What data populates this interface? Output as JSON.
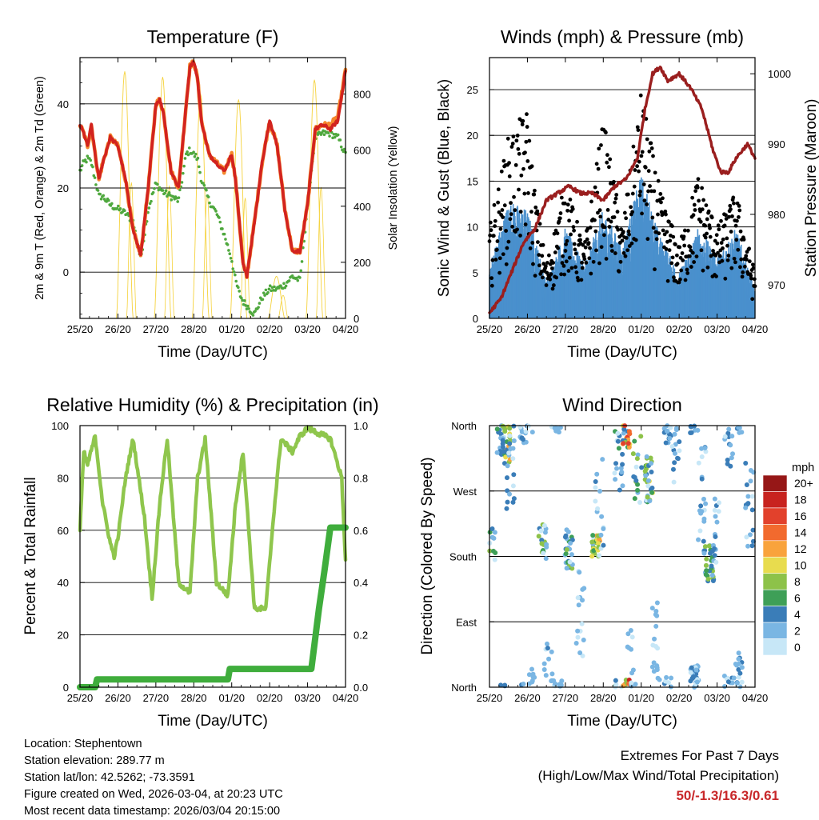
{
  "colors": {
    "temp_red": "#d2231f",
    "temp_orange": "#f5872d",
    "dewpoint_green": "#4fa83e",
    "solar_yellow": "#f5d23c",
    "gust_black": "#000000",
    "wind_blue": "#4a90cd",
    "pressure_maroon": "#9a1e1e",
    "rh_lightgreen": "#8fc64d",
    "precip_green": "#3fad3c",
    "grid": "#000000"
  },
  "chart_data": [
    {
      "type": "line",
      "name": "temperature",
      "title": "Temperature (F)",
      "xlabel": "Time (Day/UTC)",
      "ylabel": "2m & 9m T (Red, Orange) & 2m Td (Green)",
      "y2label": "Solar Insolation (Yellow)",
      "x_ticks": [
        "25/20",
        "26/20",
        "27/20",
        "28/20",
        "01/20",
        "02/20",
        "03/20",
        "04/20"
      ],
      "ylim": [
        -11,
        51
      ],
      "y_ticks": [
        0,
        20,
        40
      ],
      "y2lim": [
        0,
        930
      ],
      "y2_ticks": [
        0,
        200,
        400,
        600,
        800
      ],
      "x": [
        0,
        0.1,
        0.2,
        0.3,
        0.4,
        0.5,
        0.6,
        0.8,
        1.0,
        1.2,
        1.4,
        1.6,
        1.8,
        2.0,
        2.1,
        2.2,
        2.4,
        2.6,
        2.8,
        2.9,
        3.0,
        3.1,
        3.2,
        3.4,
        3.6,
        3.8,
        4.0,
        4.1,
        4.2,
        4.3,
        4.4,
        4.6,
        4.8,
        5.0,
        5.2,
        5.4,
        5.6,
        5.8,
        6.0,
        6.2,
        6.4,
        6.6,
        6.8,
        7.0
      ],
      "series": [
        {
          "name": "2m T",
          "color": "temp_red",
          "values": [
            35,
            33,
            30,
            35,
            28,
            22,
            26,
            32,
            30,
            22,
            10,
            4,
            20,
            40,
            41,
            38,
            24,
            20,
            40,
            49,
            50,
            46,
            36,
            28,
            26,
            24,
            28,
            22,
            12,
            2,
            -1,
            12,
            26,
            36,
            30,
            15,
            5,
            5,
            16,
            34,
            35,
            34,
            36,
            48
          ]
        },
        {
          "name": "9m T",
          "color": "temp_orange",
          "values": [
            35,
            33,
            30,
            35,
            28,
            22,
            26,
            32,
            30,
            22,
            10,
            4,
            20,
            40,
            41,
            38,
            24,
            20,
            40,
            49,
            50,
            46,
            36,
            28,
            26,
            24,
            28,
            22,
            12,
            2,
            -1,
            12,
            26,
            36,
            30,
            15,
            5,
            5,
            16,
            34,
            35,
            35,
            37,
            48
          ]
        },
        {
          "name": "2m Td",
          "color": "dewpoint_green",
          "values": [
            24,
            26,
            27,
            26,
            22,
            18,
            18,
            16,
            15,
            14,
            12,
            3,
            15,
            21,
            20,
            19,
            18,
            17,
            28,
            29,
            28,
            27,
            22,
            17,
            14,
            9,
            3,
            -2,
            -5,
            -7,
            -8,
            -10,
            -6,
            -4,
            -4,
            -3,
            -1,
            -2,
            16,
            32,
            33,
            33,
            32,
            28
          ]
        }
      ],
      "solar": {
        "name": "Solar Insolation",
        "color": "solar_yellow",
        "peaks": [
          {
            "day": 1.18,
            "value": 880
          },
          {
            "day": 2.18,
            "value": 860
          },
          {
            "day": 3.18,
            "value": 800
          },
          {
            "day": 4.18,
            "value": 780
          },
          {
            "day": 5.18,
            "value": 150
          },
          {
            "day": 6.18,
            "value": 850
          }
        ]
      }
    },
    {
      "type": "scatter",
      "name": "winds",
      "title": "Winds (mph) & Pressure (mb)",
      "xlabel": "Time (Day/UTC)",
      "ylabel": "Sonic Wind & Gust (Blue, Black)",
      "y2label": "Station Pressure (Maroon)",
      "x_ticks": [
        "25/20",
        "26/20",
        "27/20",
        "28/20",
        "01/20",
        "02/20",
        "03/20",
        "04/20"
      ],
      "ylim": [
        0,
        28.5
      ],
      "y_ticks": [
        0,
        5,
        10,
        15,
        20,
        25
      ],
      "y2lim": [
        965.2,
        1002.3
      ],
      "y2_ticks": [
        970,
        980,
        990,
        1000
      ],
      "wind_envelope": {
        "x": [
          0,
          0.5,
          1.0,
          1.2,
          1.5,
          2.0,
          2.5,
          3.0,
          3.5,
          4.0,
          4.5,
          5.0,
          5.5,
          6.0,
          6.5,
          7.0
        ],
        "gust": [
          10,
          20,
          23,
          14,
          6,
          15,
          8,
          22,
          10,
          25,
          14,
          8,
          16,
          10,
          14,
          5
        ],
        "speed": [
          6,
          13,
          12,
          9,
          4,
          10,
          6,
          12,
          8,
          16,
          9,
          5,
          10,
          7,
          10,
          3
        ]
      },
      "pressure": {
        "name": "Station Pressure",
        "color": "pressure_maroon",
        "x": [
          0,
          0.3,
          0.6,
          0.9,
          1.2,
          1.5,
          1.8,
          2.1,
          2.4,
          2.7,
          3.0,
          3.3,
          3.6,
          3.9,
          4.1,
          4.3,
          4.5,
          4.7,
          5.0,
          5.3,
          5.6,
          5.9,
          6.1,
          6.3,
          6.5,
          6.8,
          7.0
        ],
        "values": [
          966,
          968,
          972,
          976,
          978,
          982,
          983,
          984,
          983,
          983,
          982,
          984,
          985,
          988,
          995,
          1000,
          1001,
          999,
          1000,
          998,
          995,
          989,
          986,
          986,
          988,
          990,
          988
        ]
      }
    },
    {
      "type": "line",
      "name": "humidity",
      "title": "Relative Humidity (%) & Precipitation (in)",
      "xlabel": "Time (Day/UTC)",
      "ylabel": "Percent & Total Rainfall",
      "x_ticks": [
        "25/20",
        "26/20",
        "27/20",
        "28/20",
        "01/20",
        "02/20",
        "03/20",
        "04/20"
      ],
      "ylim": [
        0,
        100
      ],
      "y_ticks": [
        0,
        20,
        40,
        60,
        80,
        100
      ],
      "y2lim": [
        0,
        1.0
      ],
      "y2_ticks": [
        "0.0",
        "0.2",
        "0.4",
        "0.6",
        "0.8",
        "1.0"
      ],
      "rh": {
        "name": "Relative Humidity",
        "color": "rh_lightgreen",
        "x": [
          0,
          0.1,
          0.2,
          0.4,
          0.6,
          0.8,
          0.9,
          1.0,
          1.2,
          1.4,
          1.7,
          1.9,
          2.1,
          2.3,
          2.6,
          2.9,
          3.1,
          3.3,
          3.6,
          3.9,
          4.1,
          4.3,
          4.6,
          4.9,
          5.1,
          5.3,
          5.6,
          5.8,
          6.0,
          6.3,
          6.6,
          6.9,
          7.0
        ],
        "values": [
          60,
          90,
          85,
          96,
          70,
          55,
          50,
          57,
          80,
          95,
          65,
          34,
          70,
          95,
          40,
          36,
          80,
          95,
          40,
          35,
          70,
          90,
          30,
          30,
          65,
          95,
          90,
          96,
          99,
          97,
          95,
          80,
          48
        ]
      },
      "precip": {
        "name": "Total Rainfall",
        "color": "precip_green",
        "x": [
          0,
          0.4,
          0.45,
          3.9,
          3.95,
          6.1,
          6.3,
          6.45,
          6.6,
          7.0
        ],
        "values": [
          0,
          0,
          0.03,
          0.03,
          0.07,
          0.07,
          0.3,
          0.45,
          0.61,
          0.61
        ]
      }
    },
    {
      "type": "scatter",
      "name": "wind_direction",
      "title": "Wind Direction",
      "xlabel": "Time (Day/UTC)",
      "ylabel": "Direction (Colored By Speed)",
      "x_ticks": [
        "25/20",
        "26/20",
        "27/20",
        "28/20",
        "01/20",
        "02/20",
        "03/20",
        "04/20"
      ],
      "y_ticks": [
        "North",
        "East",
        "South",
        "West",
        "North"
      ],
      "colorbar": {
        "title": "mph",
        "labels": [
          "20+",
          "18",
          "16",
          "14",
          "12",
          "10",
          "8",
          "6",
          "4",
          "2",
          "0"
        ],
        "colors": [
          "#961717",
          "#c8231f",
          "#e2412c",
          "#f26a2e",
          "#f9a33c",
          "#e8dc4e",
          "#8dc249",
          "#3e9f57",
          "#3a7db8",
          "#7ab6e3",
          "#c7e7f7"
        ]
      }
    }
  ],
  "info": {
    "location": "Location: Stephentown",
    "elevation": "Station elevation: 289.77 m",
    "latlon": "Station lat/lon: 42.5262; -73.3591",
    "created": "Figure created on Wed, 2026-03-04, at 20:23 UTC",
    "recent": "Most recent data timestamp: 2026/03/04 20:15:00"
  },
  "extremes": {
    "line1": "Extremes For Past 7 Days",
    "line2": "(High/Low/Max Wind/Total Precipitation)",
    "values": "50/-1.3/16.3/0.61"
  }
}
